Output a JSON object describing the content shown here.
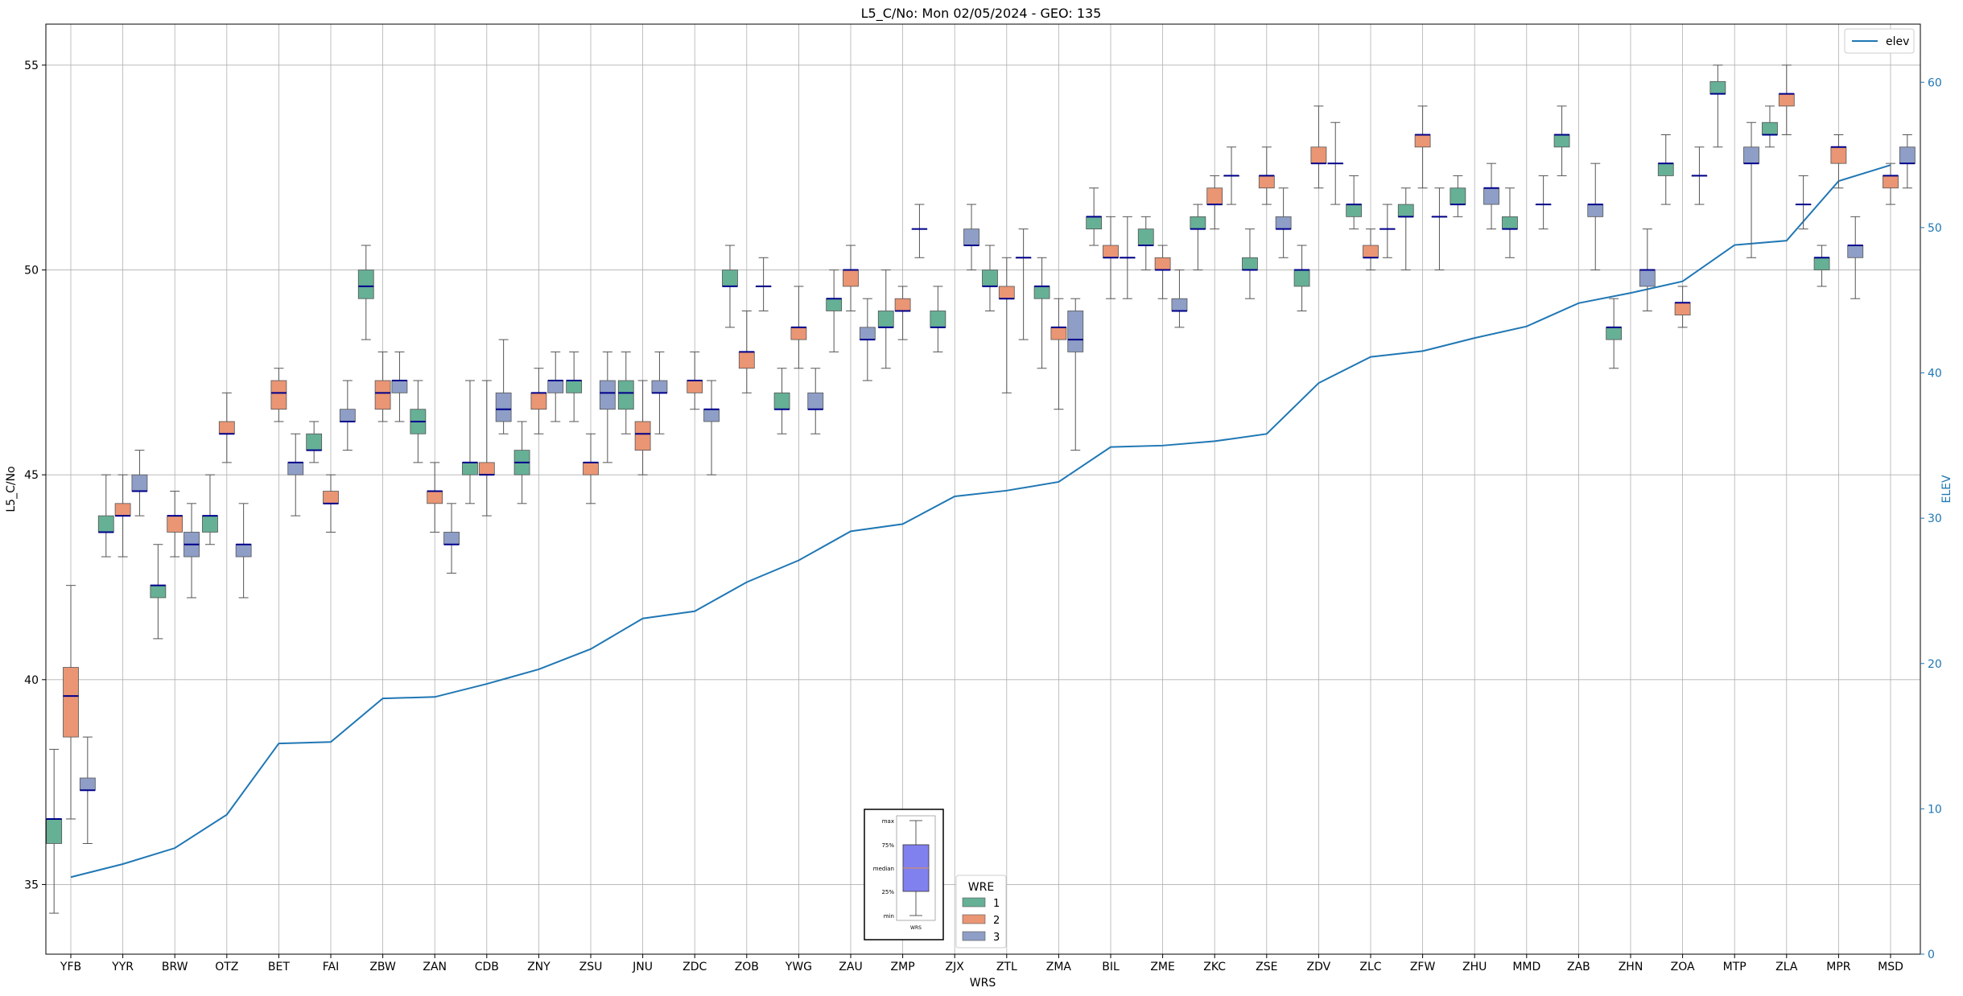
{
  "chart_data": {
    "type": "box",
    "title": "L5_C/No: Mon 02/05/2024 - GEO: 135",
    "xlabel": "WRS",
    "ylabel": "L5_C/No",
    "y2label": "ELEV",
    "ylim": [
      33.3,
      56.0
    ],
    "y2lim": [
      0,
      64
    ],
    "yticks": [
      35,
      40,
      45,
      50,
      55
    ],
    "y2ticks": [
      0,
      10,
      20,
      30,
      40,
      50,
      60
    ],
    "grid": true,
    "categories": [
      "YFB",
      "YYR",
      "BRW",
      "OTZ",
      "BET",
      "FAI",
      "ZBW",
      "ZAN",
      "CDB",
      "ZNY",
      "ZSU",
      "JNU",
      "ZDC",
      "ZOB",
      "YWG",
      "ZAU",
      "ZMP",
      "ZJX",
      "ZTL",
      "ZMA",
      "BIL",
      "ZME",
      "ZKC",
      "ZSE",
      "ZDV",
      "ZLC",
      "ZFW",
      "ZHU",
      "MMD",
      "ZAB",
      "ZHN",
      "ZOA",
      "MTP",
      "ZLA",
      "MPR",
      "MSD"
    ],
    "box_legend": {
      "title": "WRE",
      "position": "bottom-center",
      "entries": [
        "1",
        "2",
        "3"
      ]
    },
    "line_legend": {
      "position": "top-right",
      "entries": [
        "elev"
      ]
    },
    "colors": {
      "wre1": "#66b096",
      "wre2": "#ea9574",
      "wre3": "#8e9ec6",
      "median": "#00008b",
      "elev": "#1f77b4",
      "whisker": "#555555"
    },
    "inset": {
      "labels": {
        "max": "max",
        "q75": "75%",
        "median": "median",
        "q25": "25%",
        "min": "min",
        "x": "WRS"
      },
      "box_color": "#8080ee",
      "median_color": "#e09050"
    },
    "elev": [
      5.3,
      6.2,
      7.3,
      9.6,
      14.5,
      14.6,
      17.6,
      17.7,
      18.6,
      19.6,
      21.0,
      23.1,
      23.6,
      25.6,
      27.1,
      29.1,
      29.6,
      31.5,
      31.9,
      32.5,
      34.9,
      35.0,
      35.3,
      35.8,
      39.3,
      41.1,
      41.5,
      42.4,
      43.2,
      44.8,
      45.5,
      46.3,
      48.8,
      49.1,
      53.2,
      54.3
    ],
    "series": [
      {
        "name": "1",
        "boxes": [
          {
            "i": 0,
            "min": 34.3,
            "q1": 36.0,
            "med": 36.6,
            "q3": 36.6,
            "max": 38.3
          },
          {
            "i": 1,
            "min": 43.0,
            "q1": 43.6,
            "med": 43.6,
            "q3": 44.0,
            "max": 45.0
          },
          {
            "i": 2,
            "min": 41.0,
            "q1": 42.0,
            "med": 42.3,
            "q3": 42.3,
            "max": 43.3
          },
          {
            "i": 3,
            "min": 43.3,
            "q1": 43.6,
            "med": 44.0,
            "q3": 44.0,
            "max": 45.0
          },
          {
            "i": 5,
            "min": 45.3,
            "q1": 45.6,
            "med": 45.6,
            "q3": 46.0,
            "max": 46.3
          },
          {
            "i": 6,
            "min": 48.3,
            "q1": 49.3,
            "med": 49.6,
            "q3": 50.0,
            "max": 50.6
          },
          {
            "i": 7,
            "min": 45.3,
            "q1": 46.0,
            "med": 46.3,
            "q3": 46.6,
            "max": 47.3
          },
          {
            "i": 8,
            "min": 44.3,
            "q1": 45.0,
            "med": 45.3,
            "q3": 45.3,
            "max": 47.3
          },
          {
            "i": 9,
            "min": 44.3,
            "q1": 45.0,
            "med": 45.3,
            "q3": 45.6,
            "max": 46.3
          },
          {
            "i": 10,
            "min": 46.3,
            "q1": 47.0,
            "med": 47.3,
            "q3": 47.3,
            "max": 48.0
          },
          {
            "i": 11,
            "min": 46.0,
            "q1": 46.6,
            "med": 47.0,
            "q3": 47.3,
            "max": 48.0
          },
          {
            "i": 13,
            "min": 48.6,
            "q1": 49.6,
            "med": 49.6,
            "q3": 50.0,
            "max": 50.6
          },
          {
            "i": 14,
            "min": 46.0,
            "q1": 46.6,
            "med": 46.6,
            "q3": 47.0,
            "max": 47.6
          },
          {
            "i": 15,
            "min": 48.0,
            "q1": 49.0,
            "med": 49.3,
            "q3": 49.3,
            "max": 50.0
          },
          {
            "i": 16,
            "min": 47.6,
            "q1": 48.6,
            "med": 48.6,
            "q3": 49.0,
            "max": 50.0
          },
          {
            "i": 17,
            "min": 48.0,
            "q1": 48.6,
            "med": 48.6,
            "q3": 49.0,
            "max": 49.6
          },
          {
            "i": 18,
            "min": 49.0,
            "q1": 49.6,
            "med": 49.6,
            "q3": 50.0,
            "max": 50.6
          },
          {
            "i": 19,
            "min": 47.6,
            "q1": 49.3,
            "med": 49.6,
            "q3": 49.6,
            "max": 50.3
          },
          {
            "i": 20,
            "min": 50.6,
            "q1": 51.0,
            "med": 51.3,
            "q3": 51.3,
            "max": 52.0
          },
          {
            "i": 21,
            "min": 50.0,
            "q1": 50.6,
            "med": 50.6,
            "q3": 51.0,
            "max": 51.3
          },
          {
            "i": 22,
            "min": 50.0,
            "q1": 51.0,
            "med": 51.0,
            "q3": 51.3,
            "max": 51.6
          },
          {
            "i": 23,
            "min": 49.3,
            "q1": 50.0,
            "med": 50.0,
            "q3": 50.3,
            "max": 51.0
          },
          {
            "i": 24,
            "min": 49.0,
            "q1": 49.6,
            "med": 50.0,
            "q3": 50.0,
            "max": 50.6
          },
          {
            "i": 25,
            "min": 51.0,
            "q1": 51.3,
            "med": 51.6,
            "q3": 51.6,
            "max": 52.3
          },
          {
            "i": 26,
            "min": 50.0,
            "q1": 51.3,
            "med": 51.3,
            "q3": 51.6,
            "max": 52.0
          },
          {
            "i": 27,
            "min": 51.3,
            "q1": 51.6,
            "med": 51.6,
            "q3": 52.0,
            "max": 52.3
          },
          {
            "i": 28,
            "min": 50.3,
            "q1": 51.0,
            "med": 51.0,
            "q3": 51.3,
            "max": 52.0
          },
          {
            "i": 29,
            "min": 52.3,
            "q1": 53.0,
            "med": 53.3,
            "q3": 53.3,
            "max": 54.0
          },
          {
            "i": 30,
            "min": 47.6,
            "q1": 48.3,
            "med": 48.6,
            "q3": 48.6,
            "max": 49.3
          },
          {
            "i": 31,
            "min": 51.6,
            "q1": 52.3,
            "med": 52.6,
            "q3": 52.6,
            "max": 53.3
          },
          {
            "i": 32,
            "min": 53.0,
            "q1": 54.3,
            "med": 54.3,
            "q3": 54.6,
            "max": 55.0
          },
          {
            "i": 33,
            "min": 53.0,
            "q1": 53.3,
            "med": 53.3,
            "q3": 53.6,
            "max": 54.0
          },
          {
            "i": 34,
            "min": 49.6,
            "q1": 50.0,
            "med": 50.3,
            "q3": 50.3,
            "max": 50.6
          }
        ]
      },
      {
        "name": "2",
        "boxes": [
          {
            "i": 0,
            "min": 36.6,
            "q1": 38.6,
            "med": 39.6,
            "q3": 40.3,
            "max": 42.3
          },
          {
            "i": 1,
            "min": 43.0,
            "q1": 44.0,
            "med": 44.0,
            "q3": 44.3,
            "max": 45.0
          },
          {
            "i": 2,
            "min": 43.0,
            "q1": 43.6,
            "med": 44.0,
            "q3": 44.0,
            "max": 44.6
          },
          {
            "i": 3,
            "min": 45.3,
            "q1": 46.0,
            "med": 46.0,
            "q3": 46.3,
            "max": 47.0
          },
          {
            "i": 4,
            "min": 46.3,
            "q1": 46.6,
            "med": 47.0,
            "q3": 47.3,
            "max": 47.6
          },
          {
            "i": 5,
            "min": 43.6,
            "q1": 44.3,
            "med": 44.3,
            "q3": 44.6,
            "max": 45.0
          },
          {
            "i": 6,
            "min": 46.3,
            "q1": 46.6,
            "med": 47.0,
            "q3": 47.3,
            "max": 48.0
          },
          {
            "i": 7,
            "min": 43.6,
            "q1": 44.3,
            "med": 44.6,
            "q3": 44.6,
            "max": 45.3
          },
          {
            "i": 8,
            "min": 44.0,
            "q1": 45.0,
            "med": 45.0,
            "q3": 45.3,
            "max": 47.3
          },
          {
            "i": 9,
            "min": 46.0,
            "q1": 46.6,
            "med": 47.0,
            "q3": 47.0,
            "max": 47.6
          },
          {
            "i": 10,
            "min": 44.3,
            "q1": 45.0,
            "med": 45.3,
            "q3": 45.3,
            "max": 46.0
          },
          {
            "i": 11,
            "min": 45.0,
            "q1": 45.6,
            "med": 46.0,
            "q3": 46.3,
            "max": 47.3
          },
          {
            "i": 12,
            "min": 46.6,
            "q1": 47.0,
            "med": 47.3,
            "q3": 47.3,
            "max": 48.0
          },
          {
            "i": 13,
            "min": 47.0,
            "q1": 47.6,
            "med": 48.0,
            "q3": 48.0,
            "max": 49.0
          },
          {
            "i": 14,
            "min": 47.6,
            "q1": 48.3,
            "med": 48.6,
            "q3": 48.6,
            "max": 49.6
          },
          {
            "i": 15,
            "min": 49.0,
            "q1": 49.6,
            "med": 50.0,
            "q3": 50.0,
            "max": 50.6
          },
          {
            "i": 16,
            "min": 48.3,
            "q1": 49.0,
            "med": 49.0,
            "q3": 49.3,
            "max": 49.6
          },
          {
            "i": 18,
            "min": 47.0,
            "q1": 49.3,
            "med": 49.3,
            "q3": 49.6,
            "max": 50.3
          },
          {
            "i": 19,
            "min": 46.6,
            "q1": 48.3,
            "med": 48.6,
            "q3": 48.6,
            "max": 49.3
          },
          {
            "i": 20,
            "min": 49.3,
            "q1": 50.3,
            "med": 50.3,
            "q3": 50.6,
            "max": 51.3
          },
          {
            "i": 21,
            "min": 49.3,
            "q1": 50.0,
            "med": 50.0,
            "q3": 50.3,
            "max": 50.6
          },
          {
            "i": 22,
            "min": 51.0,
            "q1": 51.6,
            "med": 51.6,
            "q3": 52.0,
            "max": 52.3
          },
          {
            "i": 23,
            "min": 51.6,
            "q1": 52.0,
            "med": 52.3,
            "q3": 52.3,
            "max": 53.0
          },
          {
            "i": 24,
            "min": 52.0,
            "q1": 52.6,
            "med": 52.6,
            "q3": 53.0,
            "max": 54.0
          },
          {
            "i": 25,
            "min": 50.0,
            "q1": 50.3,
            "med": 50.3,
            "q3": 50.6,
            "max": 51.0
          },
          {
            "i": 26,
            "min": 52.0,
            "q1": 53.0,
            "med": 53.3,
            "q3": 53.3,
            "max": 54.0
          },
          {
            "i": 31,
            "min": 48.6,
            "q1": 48.9,
            "med": 49.2,
            "q3": 49.2,
            "max": 49.6
          },
          {
            "i": 33,
            "min": 53.3,
            "q1": 54.0,
            "med": 54.3,
            "q3": 54.3,
            "max": 55.0
          },
          {
            "i": 34,
            "min": 52.0,
            "q1": 52.6,
            "med": 53.0,
            "q3": 53.0,
            "max": 53.3
          },
          {
            "i": 35,
            "min": 51.6,
            "q1": 52.0,
            "med": 52.3,
            "q3": 52.3,
            "max": 52.6
          }
        ]
      },
      {
        "name": "3",
        "boxes": [
          {
            "i": 0,
            "min": 36.0,
            "q1": 37.3,
            "med": 37.3,
            "q3": 37.6,
            "max": 38.6
          },
          {
            "i": 1,
            "min": 44.0,
            "q1": 44.6,
            "med": 44.6,
            "q3": 45.0,
            "max": 45.6
          },
          {
            "i": 2,
            "min": 42.0,
            "q1": 43.0,
            "med": 43.3,
            "q3": 43.6,
            "max": 44.3
          },
          {
            "i": 3,
            "min": 42.0,
            "q1": 43.0,
            "med": 43.3,
            "q3": 43.3,
            "max": 44.3
          },
          {
            "i": 4,
            "min": 44.0,
            "q1": 45.0,
            "med": 45.3,
            "q3": 45.3,
            "max": 46.0
          },
          {
            "i": 5,
            "min": 45.6,
            "q1": 46.3,
            "med": 46.3,
            "q3": 46.6,
            "max": 47.3
          },
          {
            "i": 6,
            "min": 46.3,
            "q1": 47.0,
            "med": 47.3,
            "q3": 47.3,
            "max": 48.0
          },
          {
            "i": 7,
            "min": 42.6,
            "q1": 43.3,
            "med": 43.3,
            "q3": 43.6,
            "max": 44.3
          },
          {
            "i": 8,
            "min": 46.0,
            "q1": 46.3,
            "med": 46.6,
            "q3": 47.0,
            "max": 48.3
          },
          {
            "i": 9,
            "min": 46.3,
            "q1": 47.0,
            "med": 47.3,
            "q3": 47.3,
            "max": 48.0
          },
          {
            "i": 10,
            "min": 45.3,
            "q1": 46.6,
            "med": 47.0,
            "q3": 47.3,
            "max": 48.0
          },
          {
            "i": 11,
            "min": 46.0,
            "q1": 47.0,
            "med": 47.0,
            "q3": 47.3,
            "max": 48.0
          },
          {
            "i": 12,
            "min": 45.0,
            "q1": 46.3,
            "med": 46.6,
            "q3": 46.6,
            "max": 47.3
          },
          {
            "i": 13,
            "min": 49.0,
            "q1": 49.6,
            "med": 49.6,
            "q3": 49.6,
            "max": 50.3
          },
          {
            "i": 14,
            "min": 46.0,
            "q1": 46.6,
            "med": 46.6,
            "q3": 47.0,
            "max": 47.6
          },
          {
            "i": 15,
            "min": 47.3,
            "q1": 48.3,
            "med": 48.3,
            "q3": 48.6,
            "max": 49.3
          },
          {
            "i": 16,
            "min": 50.3,
            "q1": 51.0,
            "med": 51.0,
            "q3": 51.0,
            "max": 51.6
          },
          {
            "i": 17,
            "min": 50.0,
            "q1": 50.6,
            "med": 50.6,
            "q3": 51.0,
            "max": 51.6
          },
          {
            "i": 18,
            "min": 48.3,
            "q1": 50.3,
            "med": 50.3,
            "q3": 50.3,
            "max": 51.0
          },
          {
            "i": 19,
            "min": 45.6,
            "q1": 48.0,
            "med": 48.3,
            "q3": 49.0,
            "max": 49.3
          },
          {
            "i": 20,
            "min": 49.3,
            "q1": 50.3,
            "med": 50.3,
            "q3": 50.3,
            "max": 51.3
          },
          {
            "i": 21,
            "min": 48.6,
            "q1": 49.0,
            "med": 49.0,
            "q3": 49.3,
            "max": 50.0
          },
          {
            "i": 22,
            "min": 51.6,
            "q1": 52.3,
            "med": 52.3,
            "q3": 52.3,
            "max": 53.0
          },
          {
            "i": 23,
            "min": 50.3,
            "q1": 51.0,
            "med": 51.0,
            "q3": 51.3,
            "max": 52.0
          },
          {
            "i": 24,
            "min": 51.6,
            "q1": 52.6,
            "med": 52.6,
            "q3": 52.6,
            "max": 53.6
          },
          {
            "i": 25,
            "min": 50.3,
            "q1": 51.0,
            "med": 51.0,
            "q3": 51.0,
            "max": 51.6
          },
          {
            "i": 26,
            "min": 50.0,
            "q1": 51.3,
            "med": 51.3,
            "q3": 51.3,
            "max": 52.0
          },
          {
            "i": 27,
            "min": 51.0,
            "q1": 51.6,
            "med": 52.0,
            "q3": 52.0,
            "max": 52.6
          },
          {
            "i": 28,
            "min": 51.0,
            "q1": 51.6,
            "med": 51.6,
            "q3": 51.6,
            "max": 52.3
          },
          {
            "i": 29,
            "min": 50.0,
            "q1": 51.3,
            "med": 51.6,
            "q3": 51.6,
            "max": 52.6
          },
          {
            "i": 30,
            "min": 49.0,
            "q1": 49.6,
            "med": 50.0,
            "q3": 50.0,
            "max": 51.0
          },
          {
            "i": 31,
            "min": 51.6,
            "q1": 52.3,
            "med": 52.3,
            "q3": 52.3,
            "max": 53.0
          },
          {
            "i": 32,
            "min": 50.3,
            "q1": 52.6,
            "med": 52.6,
            "q3": 53.0,
            "max": 53.6
          },
          {
            "i": 33,
            "min": 51.0,
            "q1": 51.6,
            "med": 51.6,
            "q3": 51.6,
            "max": 52.3
          },
          {
            "i": 34,
            "min": 49.3,
            "q1": 50.3,
            "med": 50.6,
            "q3": 50.6,
            "max": 51.3
          },
          {
            "i": 35,
            "min": 52.0,
            "q1": 52.6,
            "med": 52.6,
            "q3": 53.0,
            "max": 53.3
          }
        ]
      }
    ]
  }
}
